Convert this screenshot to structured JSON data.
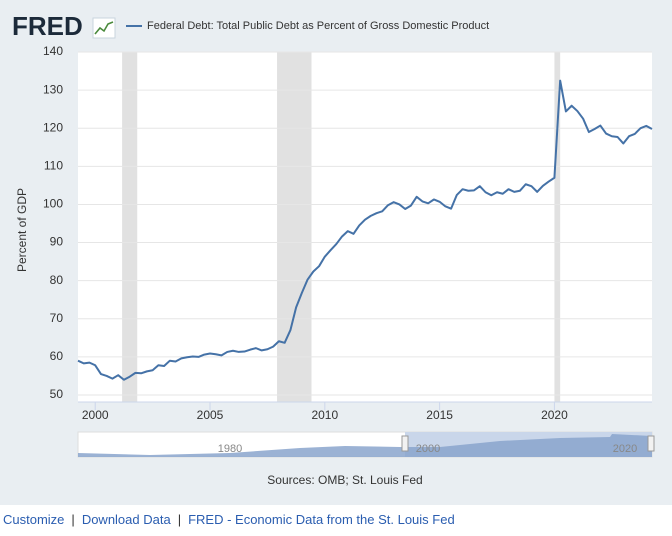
{
  "logo": "FRED",
  "chart_data": {
    "type": "line",
    "ylabel": "Percent of GDP",
    "source": "Sources: OMB; St. Louis Fed",
    "series": [
      {
        "name": "Federal Debt: Total Public Debt as Percent of Gross Domestic Product",
        "color": "#4572a7",
        "values": [
          59.0,
          58.3,
          58.5,
          57.8,
          55.5,
          55.0,
          54.3,
          55.2,
          54.0,
          54.8,
          55.8,
          55.7,
          56.2,
          56.5,
          57.8,
          57.6,
          59.0,
          58.8,
          59.6,
          59.9,
          60.1,
          60.0,
          60.6,
          60.9,
          60.7,
          60.4,
          61.3,
          61.6,
          61.3,
          61.4,
          61.9,
          62.3,
          61.7,
          62.0,
          62.7,
          64.1,
          63.7,
          67.0,
          73.0,
          76.8,
          80.3,
          82.4,
          83.8,
          86.3,
          88.0,
          89.6,
          91.6,
          93.0,
          92.3,
          94.5,
          96.0,
          97.0,
          97.7,
          98.2,
          99.8,
          100.6,
          100.0,
          98.8,
          99.7,
          102.0,
          100.8,
          100.3,
          101.3,
          100.7,
          99.5,
          98.9,
          102.5,
          104.0,
          103.6,
          103.7,
          104.8,
          103.2,
          102.4,
          103.2,
          102.8,
          104.0,
          103.3,
          103.6,
          105.3,
          104.8,
          103.3,
          104.9,
          106.0,
          107.0,
          132.5,
          124.4,
          125.9,
          124.5,
          122.5,
          119.0,
          119.8,
          120.7,
          118.6,
          117.9,
          117.7,
          116.0,
          117.9,
          118.5,
          120.0,
          120.6,
          119.8
        ]
      }
    ],
    "x": [
      1999.25,
      1999.5,
      1999.75,
      2000.0,
      2000.25,
      2000.5,
      2000.75,
      2001.0,
      2001.25,
      2001.5,
      2001.75,
      2002.0,
      2002.25,
      2002.5,
      2002.75,
      2003.0,
      2003.25,
      2003.5,
      2003.75,
      2004.0,
      2004.25,
      2004.5,
      2004.75,
      2005.0,
      2005.25,
      2005.5,
      2005.75,
      2006.0,
      2006.25,
      2006.5,
      2006.75,
      2007.0,
      2007.25,
      2007.5,
      2007.75,
      2008.0,
      2008.25,
      2008.5,
      2008.75,
      2009.0,
      2009.25,
      2009.5,
      2009.75,
      2010.0,
      2010.25,
      2010.5,
      2010.75,
      2011.0,
      2011.25,
      2011.5,
      2011.75,
      2012.0,
      2012.25,
      2012.5,
      2012.75,
      2013.0,
      2013.25,
      2013.5,
      2013.75,
      2014.0,
      2014.25,
      2014.5,
      2014.75,
      2015.0,
      2015.25,
      2015.5,
      2015.75,
      2016.0,
      2016.25,
      2016.5,
      2016.75,
      2017.0,
      2017.25,
      2017.5,
      2017.75,
      2018.0,
      2018.25,
      2018.5,
      2018.75,
      2019.0,
      2019.25,
      2019.5,
      2019.75,
      2020.0,
      2020.25,
      2020.5,
      2020.75,
      2021.0,
      2021.25,
      2021.5,
      2021.75,
      2022.0,
      2022.25,
      2022.5,
      2022.75,
      2023.0,
      2023.25,
      2023.5,
      2023.75,
      2024.0,
      2024.25
    ],
    "recessions": [
      [
        2001.17,
        2001.83
      ],
      [
        2007.92,
        2009.42
      ],
      [
        2020.0,
        2020.25
      ]
    ],
    "xlim": [
      1999.25,
      2024.25
    ],
    "xticks": [
      2000,
      2005,
      2010,
      2015,
      2020
    ],
    "ylim": [
      50,
      140
    ],
    "yticks": [
      50,
      60,
      70,
      80,
      90,
      100,
      110,
      120,
      130,
      140
    ],
    "grid": true,
    "navigator_labels": [
      "1980",
      "2000",
      "2020"
    ]
  },
  "links": [
    "Customize",
    "Download Data",
    "FRED - Economic Data from the St. Louis Fed"
  ]
}
